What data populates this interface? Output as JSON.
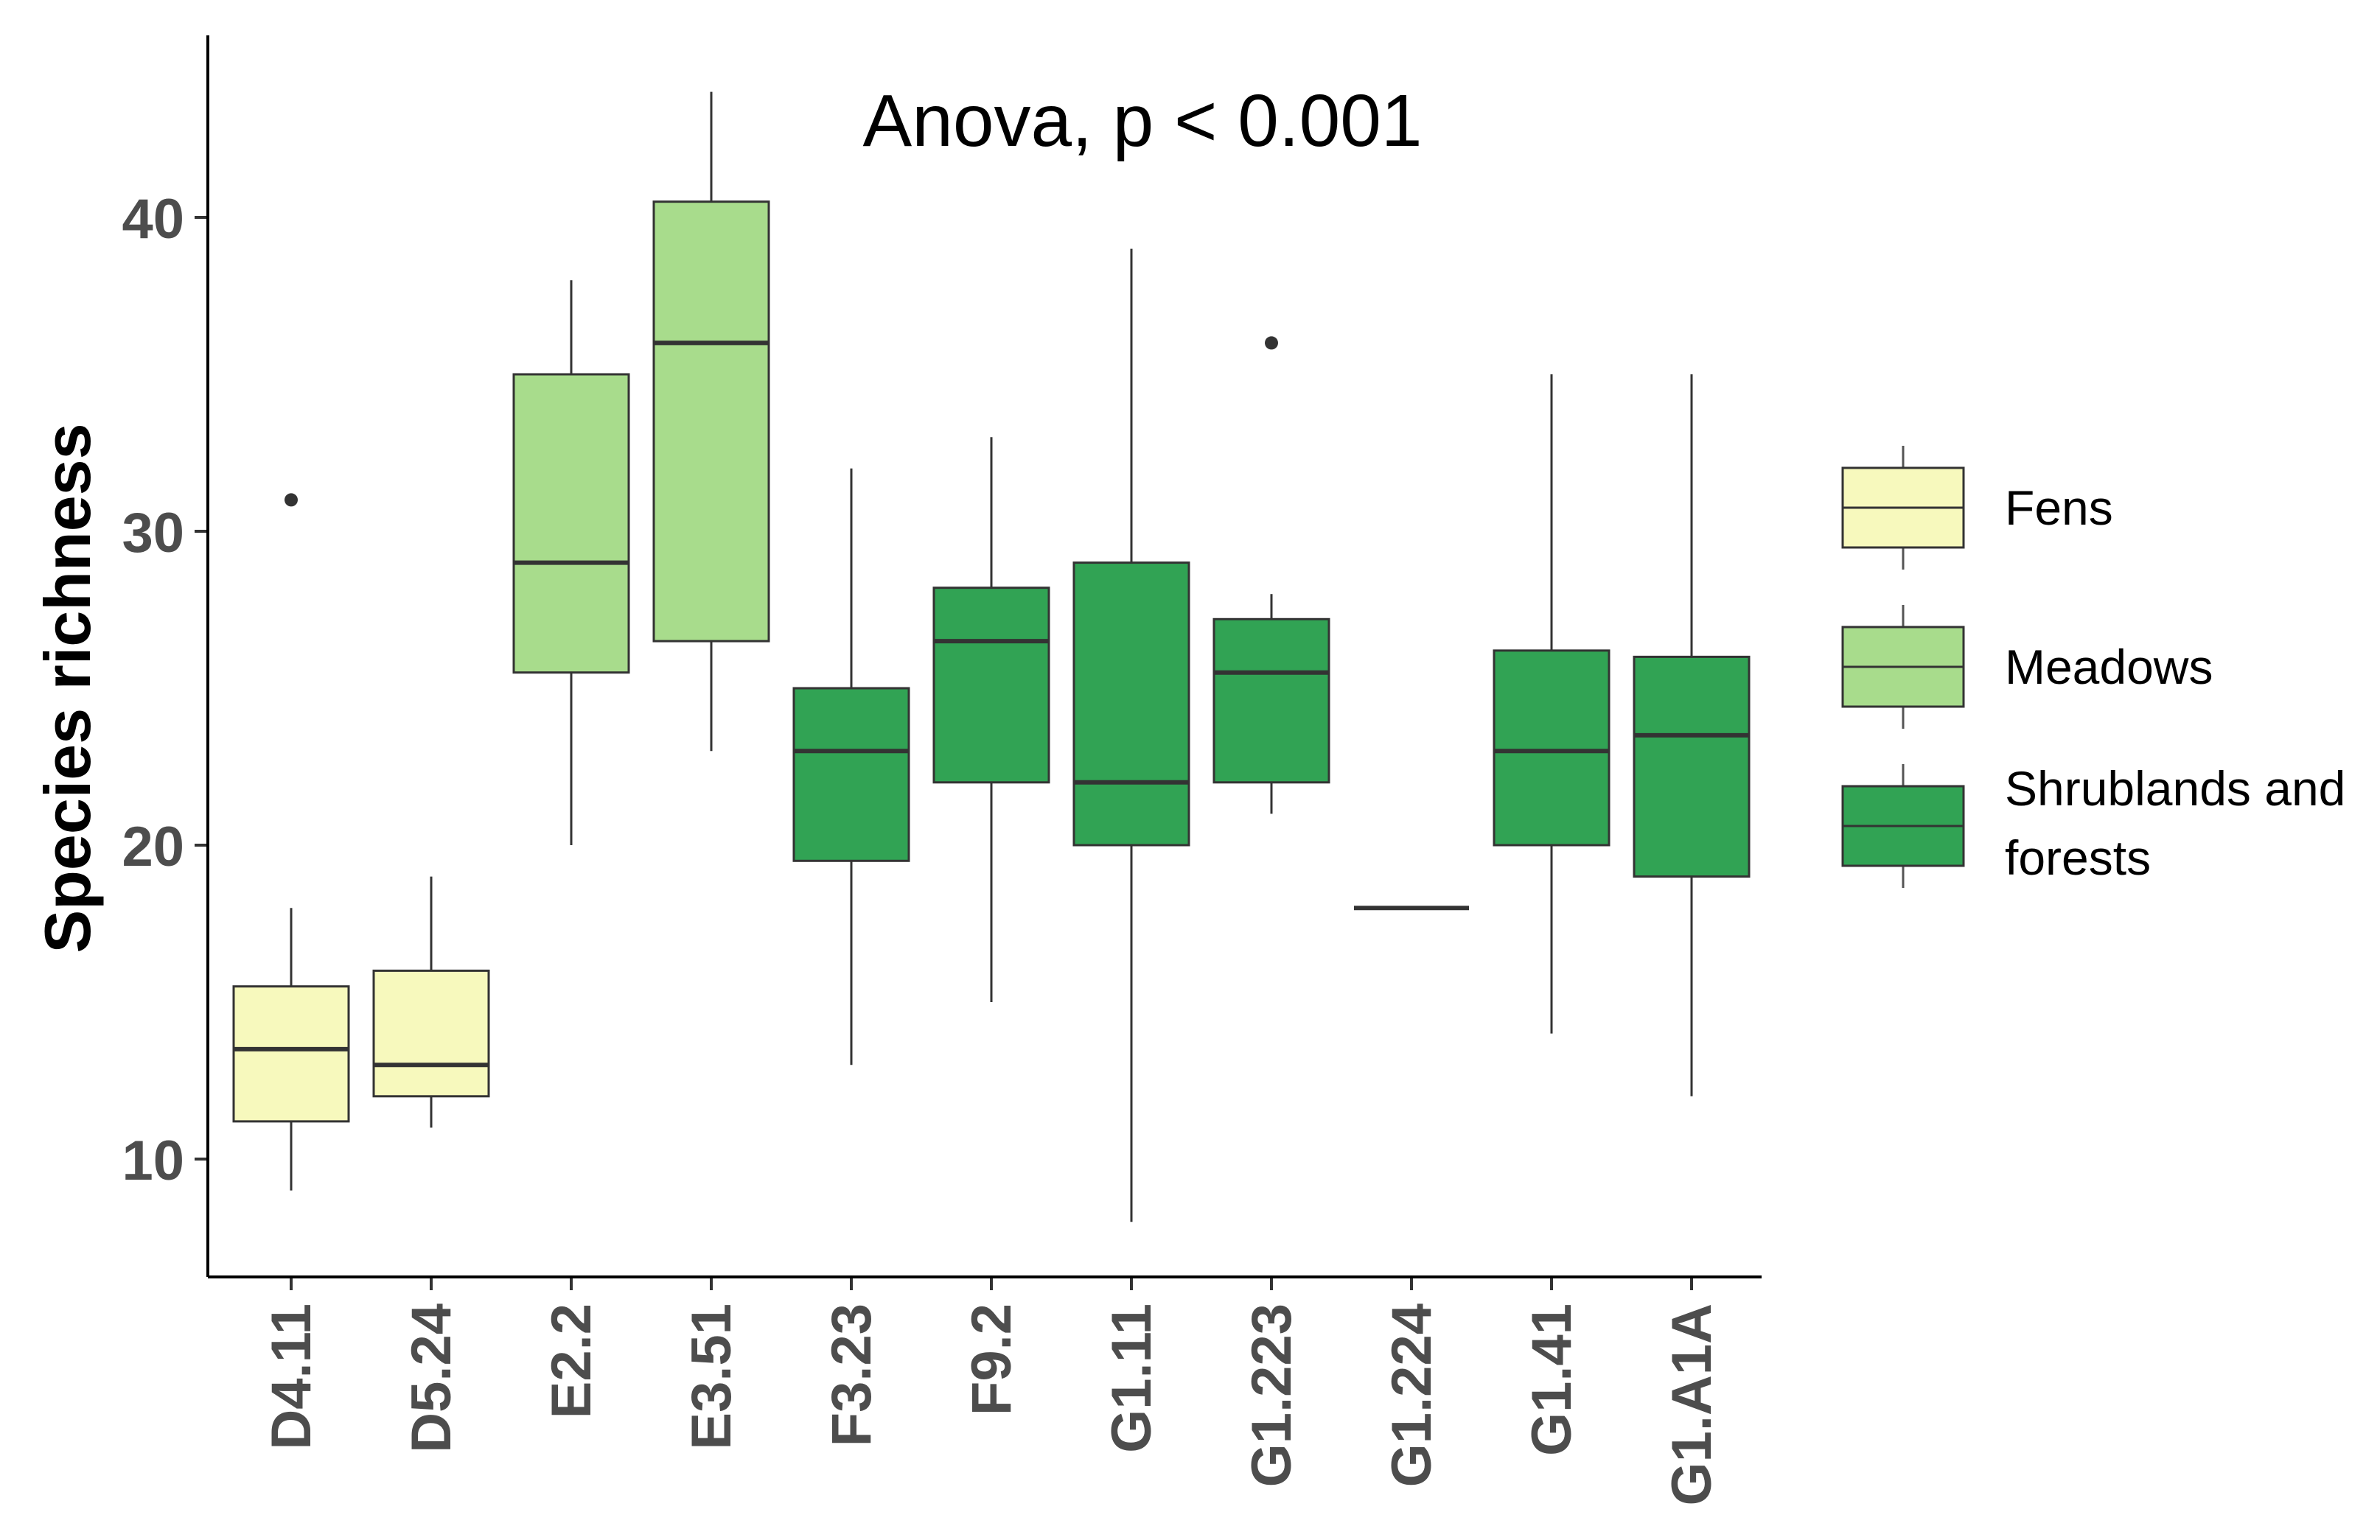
{
  "chart_data": {
    "type": "boxplot",
    "ylabel": "Species richness",
    "xlabel": "",
    "ylim": [
      6,
      46
    ],
    "yticks": [
      10,
      20,
      30,
      40
    ],
    "annotation": "Anova, p < 0.001",
    "colors": {
      "Fens": "#f7f9bd",
      "Meadows": "#a8dc8c",
      "Shrublands and forests": "#31a354"
    },
    "legend": [
      {
        "label": "Fens",
        "group": "Fens"
      },
      {
        "label": "Meadows",
        "group": "Meadows"
      },
      {
        "label": "Shrublands and",
        "label2": "forests",
        "group": "Shrublands and forests"
      }
    ],
    "categories": [
      "D4.11",
      "D5.24",
      "E2.2",
      "E3.51",
      "F3.23",
      "F9.2",
      "G1.11",
      "G1.223",
      "G1.224",
      "G1.41",
      "G1.A1A"
    ],
    "boxes": [
      {
        "category": "D4.11",
        "group": "Fens",
        "whisker_low": 9,
        "q1": 11.2,
        "median": 13.5,
        "q3": 15.5,
        "whisker_high": 18,
        "outliers": [
          31
        ]
      },
      {
        "category": "D5.24",
        "group": "Fens",
        "whisker_low": 11,
        "q1": 12,
        "median": 13,
        "q3": 16,
        "whisker_high": 19,
        "outliers": []
      },
      {
        "category": "E2.2",
        "group": "Meadows",
        "whisker_low": 20,
        "q1": 25.5,
        "median": 29,
        "q3": 35,
        "whisker_high": 38,
        "outliers": []
      },
      {
        "category": "E3.51",
        "group": "Meadows",
        "whisker_low": 23,
        "q1": 26.5,
        "median": 36,
        "q3": 40.5,
        "whisker_high": 44,
        "outliers": []
      },
      {
        "category": "F3.23",
        "group": "Shrublands and forests",
        "whisker_low": 13,
        "q1": 19.5,
        "median": 23,
        "q3": 25,
        "whisker_high": 32,
        "outliers": []
      },
      {
        "category": "F9.2",
        "group": "Shrublands and forests",
        "whisker_low": 15,
        "q1": 22,
        "median": 26.5,
        "q3": 28.2,
        "whisker_high": 33,
        "outliers": []
      },
      {
        "category": "G1.11",
        "group": "Shrublands and forests",
        "whisker_low": 8,
        "q1": 20,
        "median": 22,
        "q3": 29,
        "whisker_high": 39,
        "outliers": []
      },
      {
        "category": "G1.223",
        "group": "Shrublands and forests",
        "whisker_low": 21,
        "q1": 22,
        "median": 25.5,
        "q3": 27.2,
        "whisker_high": 28,
        "outliers": [
          36
        ]
      },
      {
        "category": "G1.224",
        "group": "Shrublands and forests",
        "whisker_low": 18,
        "q1": 18,
        "median": 18,
        "q3": 18,
        "whisker_high": 18,
        "outliers": []
      },
      {
        "category": "G1.41",
        "group": "Shrublands and forests",
        "whisker_low": 14,
        "q1": 20,
        "median": 23,
        "q3": 26.2,
        "whisker_high": 35,
        "outliers": []
      },
      {
        "category": "G1.A1A",
        "group": "Shrublands and forests",
        "whisker_low": 12,
        "q1": 19,
        "median": 23.5,
        "q3": 26,
        "whisker_high": 35,
        "outliers": []
      }
    ]
  }
}
